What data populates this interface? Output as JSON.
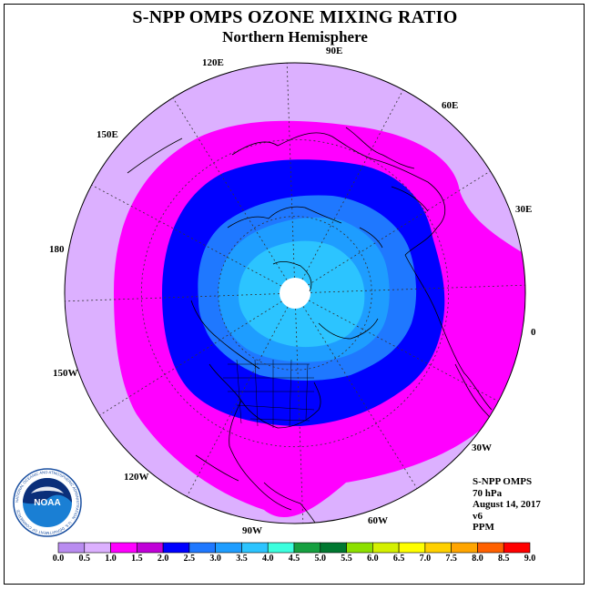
{
  "header": {
    "title": "S-NPP OMPS OZONE MIXING RATIO",
    "subtitle": "Northern Hemisphere"
  },
  "longitude_labels": [
    {
      "text": "90E"
    },
    {
      "text": "60E"
    },
    {
      "text": "30E"
    },
    {
      "text": "0"
    },
    {
      "text": "30W"
    },
    {
      "text": "60W"
    },
    {
      "text": "90W"
    },
    {
      "text": "120W"
    },
    {
      "text": "150W"
    },
    {
      "text": "180"
    },
    {
      "text": "150E"
    },
    {
      "text": "120E"
    }
  ],
  "info": {
    "instrument": "S-NPP OMPS",
    "level": "70 hPa",
    "date": "August 14, 2017",
    "version": "v6",
    "unit": "PPM"
  },
  "logo": {
    "text": "NOAA",
    "ring_text": "NATIONAL OCEANIC AND ATMOSPHERIC ADMINISTRATION · U.S. DEPARTMENT OF COMMERCE"
  },
  "colorbar": {
    "labels": [
      "0.0",
      "0.5",
      "1.0",
      "1.5",
      "2.0",
      "2.5",
      "3.0",
      "3.5",
      "4.0",
      "4.5",
      "5.0",
      "5.5",
      "6.0",
      "6.5",
      "7.0",
      "7.5",
      "8.0",
      "8.5",
      "9.0"
    ],
    "colors": [
      "#b98cf0",
      "#dcb0ff",
      "#ff00ff",
      "#c000d8",
      "#0000ff",
      "#1f78ff",
      "#1e9dff",
      "#2cc4ff",
      "#3cffde",
      "#16a040",
      "#007830",
      "#8ce000",
      "#d4f000",
      "#ffff00",
      "#ffd000",
      "#ffa500",
      "#ff6000",
      "#ff0000",
      "#a05a2c"
    ]
  },
  "ozone_levels": {
    "outer": "#dcb0ff",
    "band_1_0": "#ff00ff",
    "band_1_5": "#0000ff",
    "band_2_0": "#1f78ff",
    "band_2_5": "#1e9dff",
    "band_3_0": "#2cc4ff"
  }
}
